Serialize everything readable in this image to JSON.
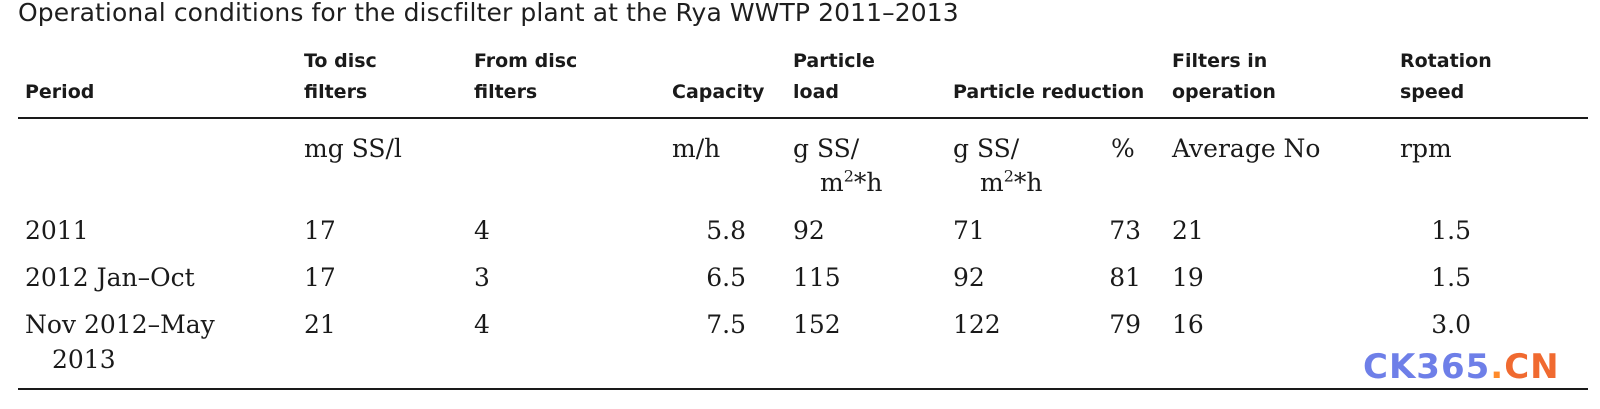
{
  "caption": "Operational conditions for the discfilter plant at the Rya WWTP 2011–2013",
  "headers": {
    "period": "Period",
    "to_disc": [
      "To disc",
      "filters"
    ],
    "from_disc": [
      "From disc",
      "filters"
    ],
    "capacity": "Capacity",
    "particle_load": [
      "Particle",
      "load"
    ],
    "particle_reduction": "Particle reduction",
    "filters_in": [
      "Filters in",
      "operation"
    ],
    "rotation": [
      "Rotation",
      "speed"
    ]
  },
  "units": {
    "to_disc": "mg SS/l",
    "capacity": "m/h",
    "particle_load": [
      "g SS/",
      "m",
      "2",
      "*h"
    ],
    "reduction_mass": [
      "g SS/",
      "m",
      "2",
      "*h"
    ],
    "reduction_pct": "%",
    "filters": "Average No",
    "rotation": "rpm"
  },
  "rows": [
    {
      "period": [
        "2011"
      ],
      "to_disc": "17",
      "from_disc": "4",
      "capacity": "5.8",
      "load": "92",
      "red_mass": "71",
      "red_pct": "73",
      "filters": "21",
      "rotation": "1.5"
    },
    {
      "period": [
        "2012 Jan–Oct"
      ],
      "to_disc": "17",
      "from_disc": "3",
      "capacity": "6.5",
      "load": "115",
      "red_mass": "92",
      "red_pct": "81",
      "filters": "19",
      "rotation": "1.5"
    },
    {
      "period": [
        "Nov 2012–May",
        "2013"
      ],
      "to_disc": "21",
      "from_disc": "4",
      "capacity": "7.5",
      "load": "152",
      "red_mass": "122",
      "red_pct": "79",
      "filters": "16",
      "rotation": "3.0"
    }
  ],
  "watermark": {
    "a": "CK365",
    "dot": ".",
    "b": "CN"
  }
}
